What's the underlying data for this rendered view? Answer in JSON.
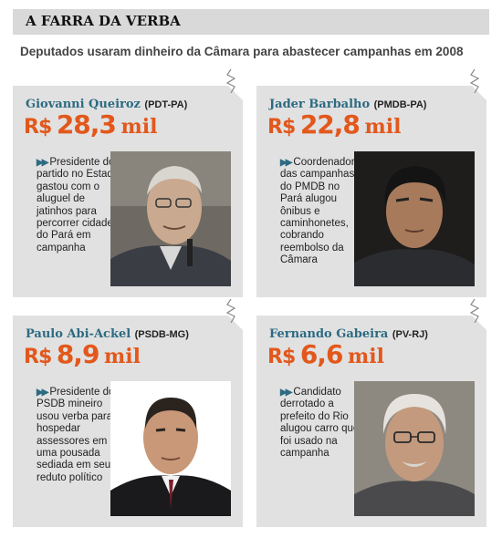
{
  "header": {
    "title": "A FARRA DA VERBA"
  },
  "subtitle": "Deputados usaram dinheiro da Câmara para abastecer campanhas em 2008",
  "cards": [
    {
      "name": "Giovanni Queiroz",
      "party": "(PDT-PA)",
      "currency": "R$",
      "amount": "28,3",
      "unit": "mil",
      "description": "Presidente do partido no Estado gastou com o aluguel de jatinhos para percorrer cidades do Pará em campanha"
    },
    {
      "name": "Jader Barbalho",
      "party": "(PMDB-PA)",
      "currency": "R$",
      "amount": "22,8",
      "unit": "mil",
      "description": "Coordenador das campanhas do PMDB no Pará alugou ônibus e caminhonetes, cobrando reembolso da Câmara"
    },
    {
      "name": "Paulo Abi-Ackel",
      "party": "(PSDB-MG)",
      "currency": "R$",
      "amount": "8,9",
      "unit": "mil",
      "description": "Presidente do PSDB mineiro usou verba para hospedar assessores em uma pousada sediada em seu reduto político"
    },
    {
      "name": "Fernando Gabeira",
      "party": "(PV-RJ)",
      "currency": "R$",
      "amount": "6,6",
      "unit": "mil",
      "description": "Candidato derrotado a prefeito do Rio alugou carro que foi usado na campanha"
    }
  ],
  "colors": {
    "accent": "#e2581c",
    "name": "#2d6b82",
    "card": "#e1e1e1",
    "header": "#d9d9d9"
  }
}
